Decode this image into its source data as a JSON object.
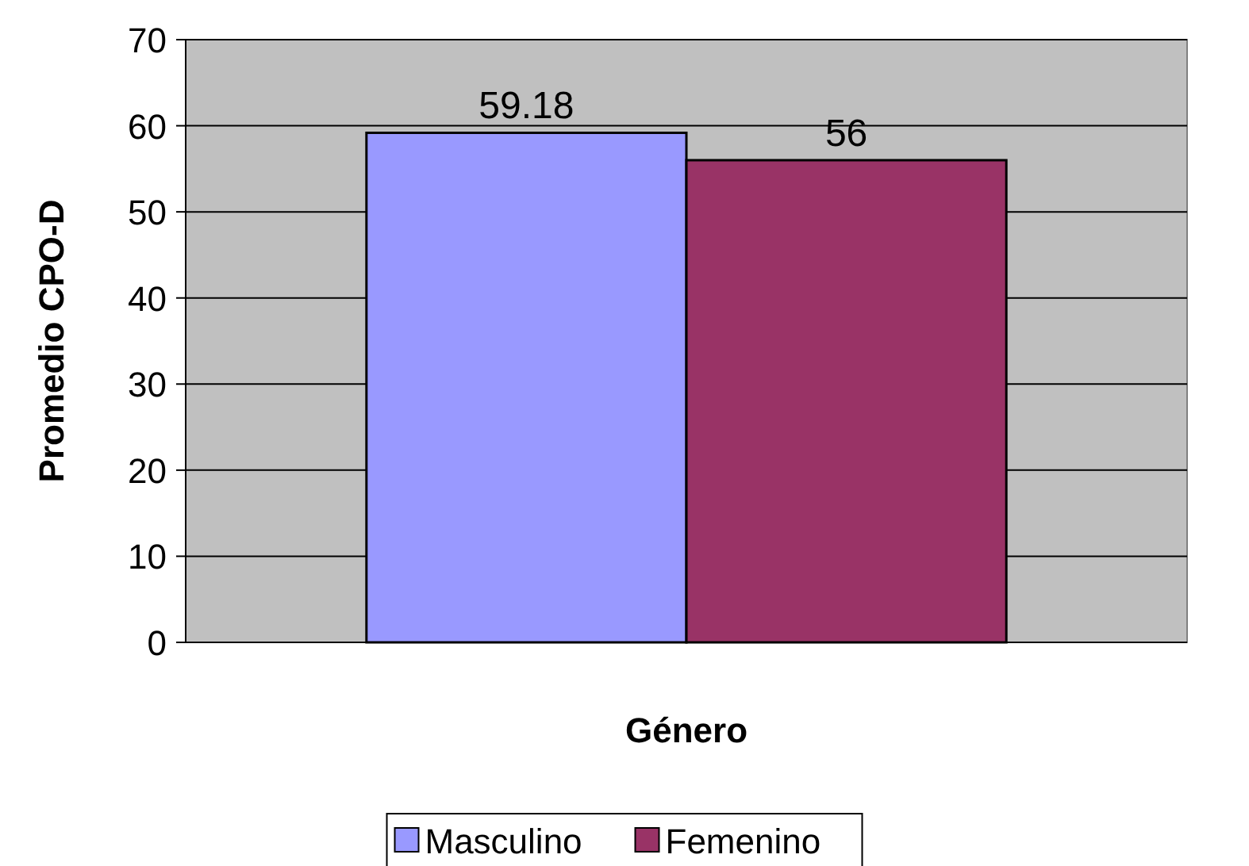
{
  "chart_data": {
    "type": "bar",
    "xlabel": "Género",
    "ylabel": "Promedio CPO-D",
    "categories": [
      null
    ],
    "series": [
      {
        "name": "Masculino",
        "color": "#9999ff",
        "values": [
          59.18
        ]
      },
      {
        "name": "Femenino",
        "color": "#993366",
        "values": [
          56
        ]
      }
    ],
    "ylim": [
      0,
      70
    ],
    "yticks": [
      0,
      10,
      20,
      30,
      40,
      50,
      60,
      70
    ],
    "grid": "y",
    "legend": "bottom",
    "data_labels": true
  }
}
